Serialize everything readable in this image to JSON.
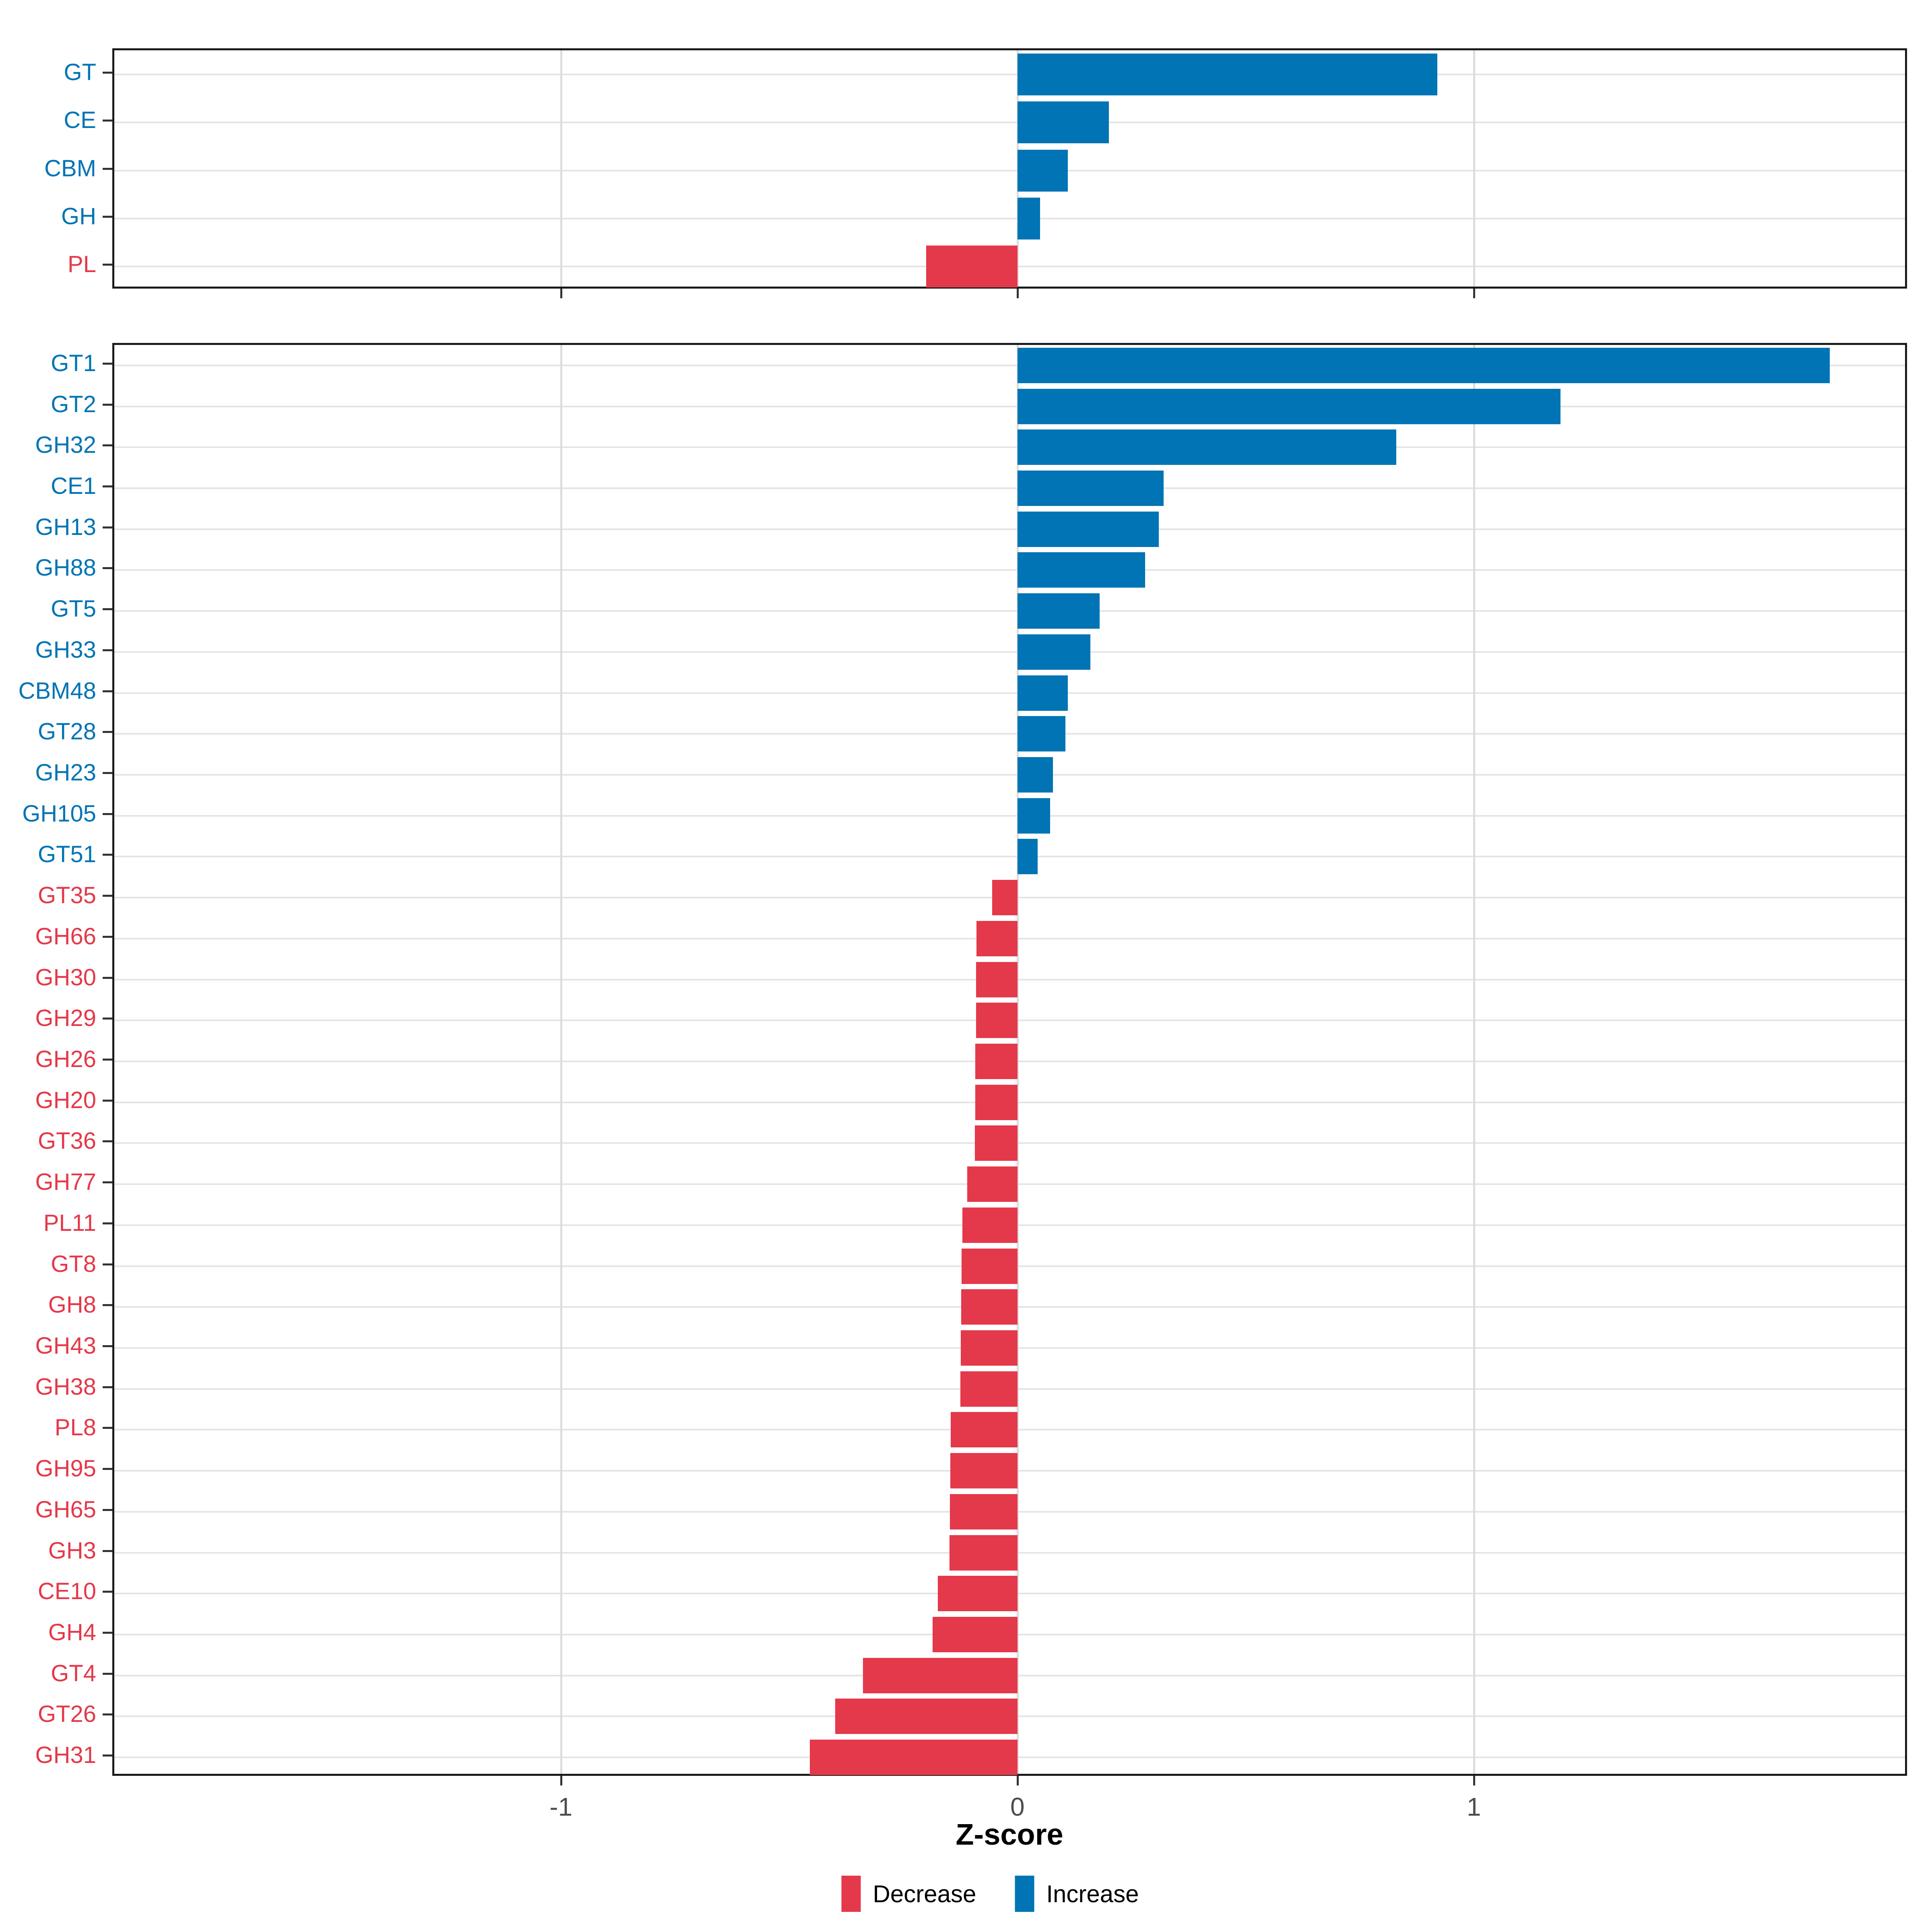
{
  "figure": {
    "background": "#ffffff"
  },
  "colors": {
    "increase": "#0074B4",
    "decrease": "#E4394A",
    "grid_vertical": "#dcdcdc",
    "grid_horizontal": "#e4e4e4",
    "panel_border": "#1a1a1a",
    "tick_mark": "#333333",
    "tick_label": "#4d4d4d",
    "axis_title": "#000000"
  },
  "axis": {
    "title": "Z-score",
    "tick_labels": [
      "-1",
      "0",
      "1"
    ],
    "tick_values": [
      -1,
      0,
      1
    ],
    "xlim": [
      -1.983,
      1.949
    ],
    "grid": "major-only"
  },
  "legend": {
    "position": "bottom-center",
    "items": [
      {
        "label": "Decrease",
        "color": "#E4394A"
      },
      {
        "label": "Increase",
        "color": "#0074B4"
      }
    ]
  },
  "chart_data": [
    {
      "type": "bar",
      "orientation": "horizontal",
      "panel": "top",
      "title": "",
      "xlabel": "Z-score",
      "categories": [
        "GT",
        "CE",
        "CBM",
        "GH",
        "PL"
      ],
      "values": [
        0.92,
        0.2,
        0.11,
        0.05,
        -0.2
      ],
      "series_note": "bars colored blue when value > 0 (Increase), red when value < 0 (Decrease)"
    },
    {
      "type": "bar",
      "orientation": "horizontal",
      "panel": "bottom",
      "title": "",
      "xlabel": "Z-score",
      "categories": [
        "GT1",
        "GT2",
        "GH32",
        "CE1",
        "GH13",
        "GH88",
        "GT5",
        "GH33",
        "CBM48",
        "GT28",
        "GH23",
        "GH105",
        "GT51",
        "GT35",
        "GH66",
        "GH30",
        "GH29",
        "GH26",
        "GH20",
        "GT36",
        "GH77",
        "PL11",
        "GT8",
        "GH8",
        "GH43",
        "GH38",
        "PL8",
        "GH95",
        "GH65",
        "GH3",
        "CE10",
        "GH4",
        "GT4",
        "GT26",
        "GH31"
      ],
      "values": [
        1.78,
        1.19,
        0.83,
        0.32,
        0.31,
        0.28,
        0.18,
        0.16,
        0.11,
        0.105,
        0.078,
        0.072,
        0.044,
        -0.055,
        -0.09,
        -0.091,
        -0.091,
        -0.092,
        -0.092,
        -0.093,
        -0.11,
        -0.121,
        -0.122,
        -0.123,
        -0.124,
        -0.125,
        -0.146,
        -0.147,
        -0.148,
        -0.149,
        -0.174,
        -0.186,
        -0.338,
        -0.399,
        -0.455
      ],
      "series_note": "bars colored blue when value > 0 (Increase), red when value < 0 (Decrease)"
    }
  ]
}
